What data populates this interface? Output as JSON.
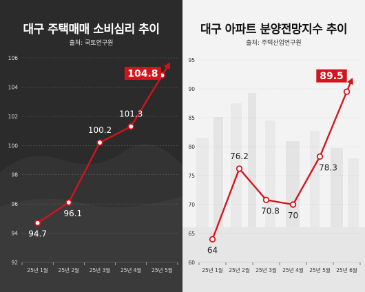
{
  "colors": {
    "accent": "#d4141c",
    "left_bg": "#2a2a2a",
    "right_bg": "#f3f3f3"
  },
  "chart_data": [
    {
      "type": "line",
      "title": "대구 주택매매 소비심리 추이",
      "subtitle": "출처: 국토연구원",
      "categories": [
        "25년 1월",
        "25년 2월",
        "25년 3월",
        "25년 4월",
        "25년 5월"
      ],
      "series": [
        {
          "values": [
            94.7,
            96.1,
            100.2,
            101.3,
            104.8
          ]
        }
      ],
      "data_labels": [
        "94.7",
        "96.1",
        "100.2",
        "101.3",
        "104.8"
      ],
      "yticks": [
        92,
        94,
        96,
        98,
        100,
        102,
        104,
        106
      ],
      "ylim": [
        92,
        106
      ],
      "grid": true,
      "theme": "dark",
      "highlight_last": true
    },
    {
      "type": "line",
      "title": "대구 아파트 분양전망지수 추이",
      "subtitle": "출처: 주택산업연구원",
      "categories": [
        "25년 1월",
        "25년 2월",
        "25년 3월",
        "25년 4월",
        "25년 5월",
        "25년 6월"
      ],
      "series": [
        {
          "values": [
            64,
            76.2,
            70.8,
            70,
            78.3,
            89.5
          ]
        }
      ],
      "data_labels": [
        "64",
        "76.2",
        "70.8",
        "70",
        "78.3",
        "89.5"
      ],
      "yticks": [
        60,
        65,
        70,
        75,
        80,
        85,
        90,
        95
      ],
      "ylim": [
        60,
        95
      ],
      "grid": true,
      "theme": "light",
      "highlight_last": true
    }
  ]
}
